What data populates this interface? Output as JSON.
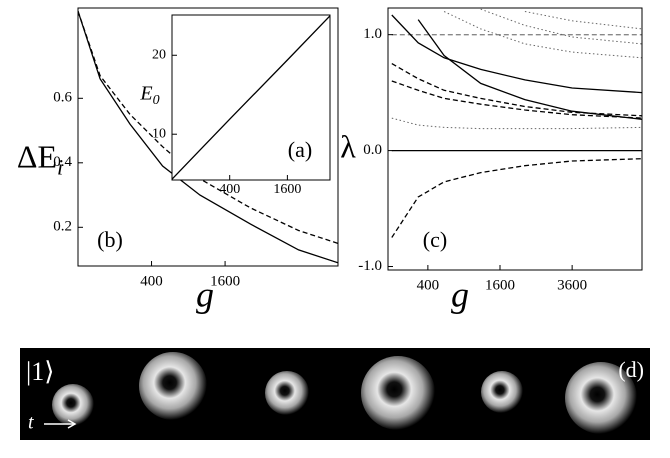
{
  "chart_data": [
    {
      "type": "line",
      "panel": "(b)",
      "ylabel": "ΔE",
      "ylabel_sub": "i",
      "xlabel": "g",
      "xscale": "sqrt",
      "xlim": [
        0,
        5000
      ],
      "ylim": [
        0.08,
        0.88
      ],
      "xticks": [
        400,
        1600
      ],
      "yticks": [
        0.2,
        0.4,
        0.6
      ],
      "x": [
        0,
        36,
        200,
        530,
        1100,
        2200,
        3600,
        5000
      ],
      "series": [
        {
          "color": "#000000",
          "dash": "solid",
          "values": [
            0.87,
            0.66,
            0.52,
            0.39,
            0.3,
            0.21,
            0.13,
            0.09
          ]
        },
        {
          "color": "#000000",
          "dash": "dashed",
          "values": [
            0.87,
            0.67,
            0.55,
            0.45,
            0.35,
            0.26,
            0.19,
            0.15
          ]
        }
      ]
    },
    {
      "type": "line",
      "panel": "(a)",
      "ylabel": "E",
      "ylabel_sub": "0",
      "xscale": "sqrt",
      "xlim": [
        0,
        3000
      ],
      "ylim": [
        4.2,
        25.1
      ],
      "xticks": [
        400,
        1600
      ],
      "yticks": [
        10,
        20
      ],
      "x": [
        0,
        100,
        400,
        1600,
        3000
      ],
      "series": [
        {
          "color": "#000000",
          "dash": "solid",
          "values": [
            4.3,
            8.1,
            11.9,
            19.4,
            25.0
          ]
        }
      ]
    },
    {
      "type": "line",
      "panel": "(c)",
      "ylabel": "λ",
      "xlabel": "g",
      "xscale": "sqrt",
      "xlim": [
        80,
        6300
      ],
      "ylim": [
        -1.03,
        1.23
      ],
      "xticks": [
        400,
        1600,
        3600
      ],
      "yticks": [
        {
          "value": 1,
          "label": "1.0"
        },
        {
          "value": 0,
          "label": "0.0"
        },
        {
          "value": -1,
          "label": "-1.0"
        }
      ],
      "x": [
        100,
        300,
        600,
        1200,
        2200,
        3600,
        6300
      ],
      "series": [
        {
          "color": "#888888",
          "dash": "dashed",
          "values": [
            1,
            1,
            1,
            1,
            1,
            1,
            1
          ]
        },
        {
          "color": "#000000",
          "dash": "solid",
          "values": [
            0,
            0,
            0,
            0,
            0,
            0,
            0
          ]
        },
        {
          "color": "#000000",
          "dash": "solid",
          "values": [
            1.17,
            0.93,
            0.8,
            0.7,
            0.61,
            0.54,
            0.5
          ]
        },
        {
          "color": "#000000",
          "dash": "solid",
          "values": [
            null,
            1.13,
            0.82,
            0.58,
            0.44,
            0.34,
            0.27
          ]
        },
        {
          "color": "#000000",
          "dash": "dashed",
          "values": [
            0.75,
            0.62,
            0.52,
            0.45,
            0.38,
            0.33,
            0.3
          ]
        },
        {
          "color": "#000000",
          "dash": "dashed",
          "values": [
            0.6,
            0.52,
            0.45,
            0.4,
            0.35,
            0.31,
            0.28
          ]
        },
        {
          "color": "#000000",
          "dash": "dashed",
          "values": [
            -0.75,
            -0.4,
            -0.27,
            -0.19,
            -0.13,
            -0.09,
            -0.07
          ]
        },
        {
          "color": "#666666",
          "dash": "dotted",
          "values": [
            0.28,
            0.22,
            0.2,
            0.19,
            0.19,
            0.19,
            0.2
          ]
        },
        {
          "color": "#666666",
          "dash": "dotted",
          "values": [
            null,
            null,
            1.2,
            1.05,
            0.92,
            0.85,
            0.8
          ]
        },
        {
          "color": "#666666",
          "dash": "dotted",
          "values": [
            null,
            null,
            null,
            1.22,
            1.08,
            0.98,
            0.92
          ]
        },
        {
          "color": "#666666",
          "dash": "dotted",
          "values": [
            null,
            null,
            null,
            null,
            1.2,
            1.12,
            1.05
          ]
        }
      ]
    }
  ],
  "panel_d": {
    "label": "(d)",
    "state": "|1⟩",
    "time_label": "t"
  }
}
